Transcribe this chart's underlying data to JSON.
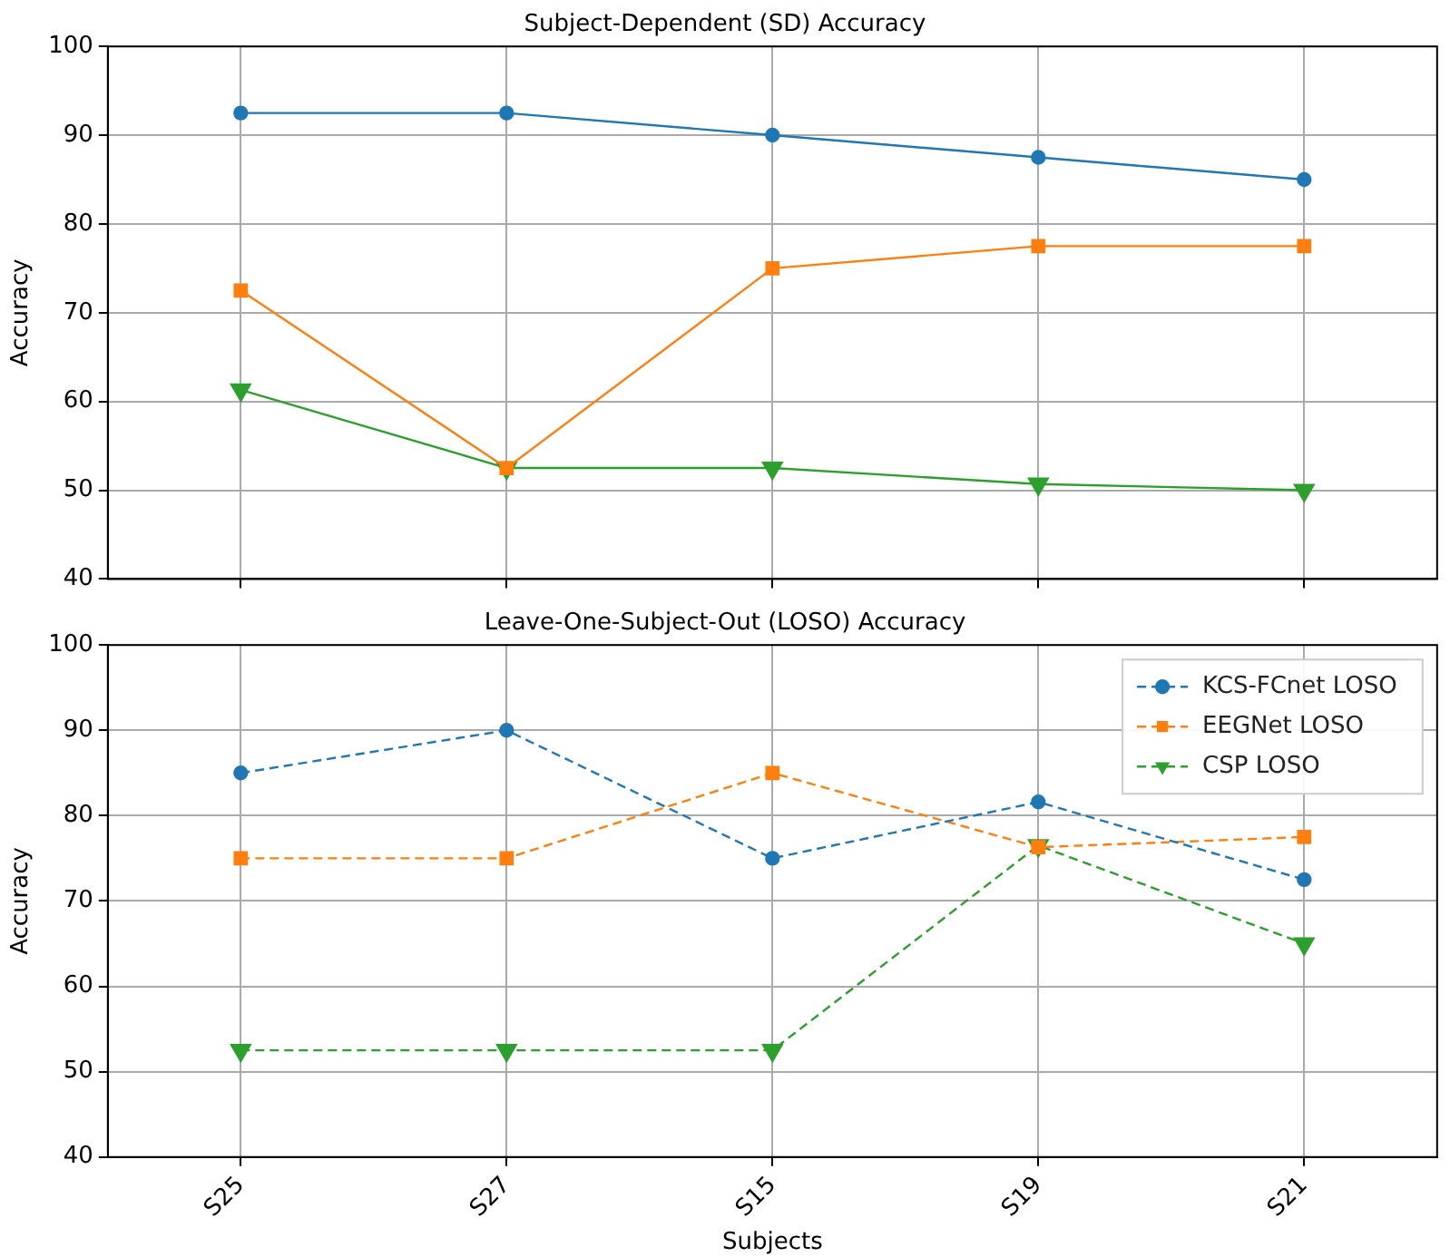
{
  "chart_data": [
    {
      "type": "line",
      "title": "Subject-Dependent (SD) Accuracy",
      "ylabel": "Accuracy",
      "categories": [
        null,
        null,
        null,
        null,
        null
      ],
      "ylim": [
        40,
        100
      ],
      "yticks": [
        40,
        50,
        60,
        70,
        80,
        90,
        100
      ],
      "grid": true,
      "tick_labels": "y",
      "line_style": "solid",
      "legend": false,
      "series": [
        {
          "color": "#1f77b4",
          "marker": "circle",
          "values": [
            92.5,
            92.5,
            90,
            87.5,
            85
          ]
        },
        {
          "color": "#ff7f0e",
          "marker": "square",
          "values": [
            72.5,
            52.5,
            75,
            77.5,
            77.5
          ]
        },
        {
          "color": "#2ca02c",
          "marker": "triangle",
          "values": [
            61.3,
            52.5,
            52.5,
            50.7,
            50
          ]
        }
      ]
    },
    {
      "type": "line",
      "title": "Leave-One-Subject-Out (LOSO) Accuracy",
      "xlabel": "Subjects",
      "ylabel": "Accuracy",
      "categories": [
        "S25",
        "S27",
        "S15",
        "S19",
        "S21"
      ],
      "ylim": [
        40,
        100
      ],
      "yticks": [
        40,
        50,
        60,
        70,
        80,
        90,
        100
      ],
      "grid": true,
      "line_style": "dashed",
      "legend": "top right",
      "series": [
        {
          "name": "KCS-FCnet LOSO",
          "color": "#1f77b4",
          "marker": "circle",
          "values": [
            85,
            90,
            75,
            81.6,
            72.5
          ]
        },
        {
          "name": "EEGNet LOSO",
          "color": "#ff7f0e",
          "marker": "square",
          "values": [
            75,
            75,
            85,
            76.3,
            77.5
          ]
        },
        {
          "name": "CSP LOSO",
          "color": "#2ca02c",
          "marker": "triangle",
          "values": [
            52.5,
            52.5,
            52.5,
            76.5,
            65
          ]
        }
      ]
    }
  ]
}
